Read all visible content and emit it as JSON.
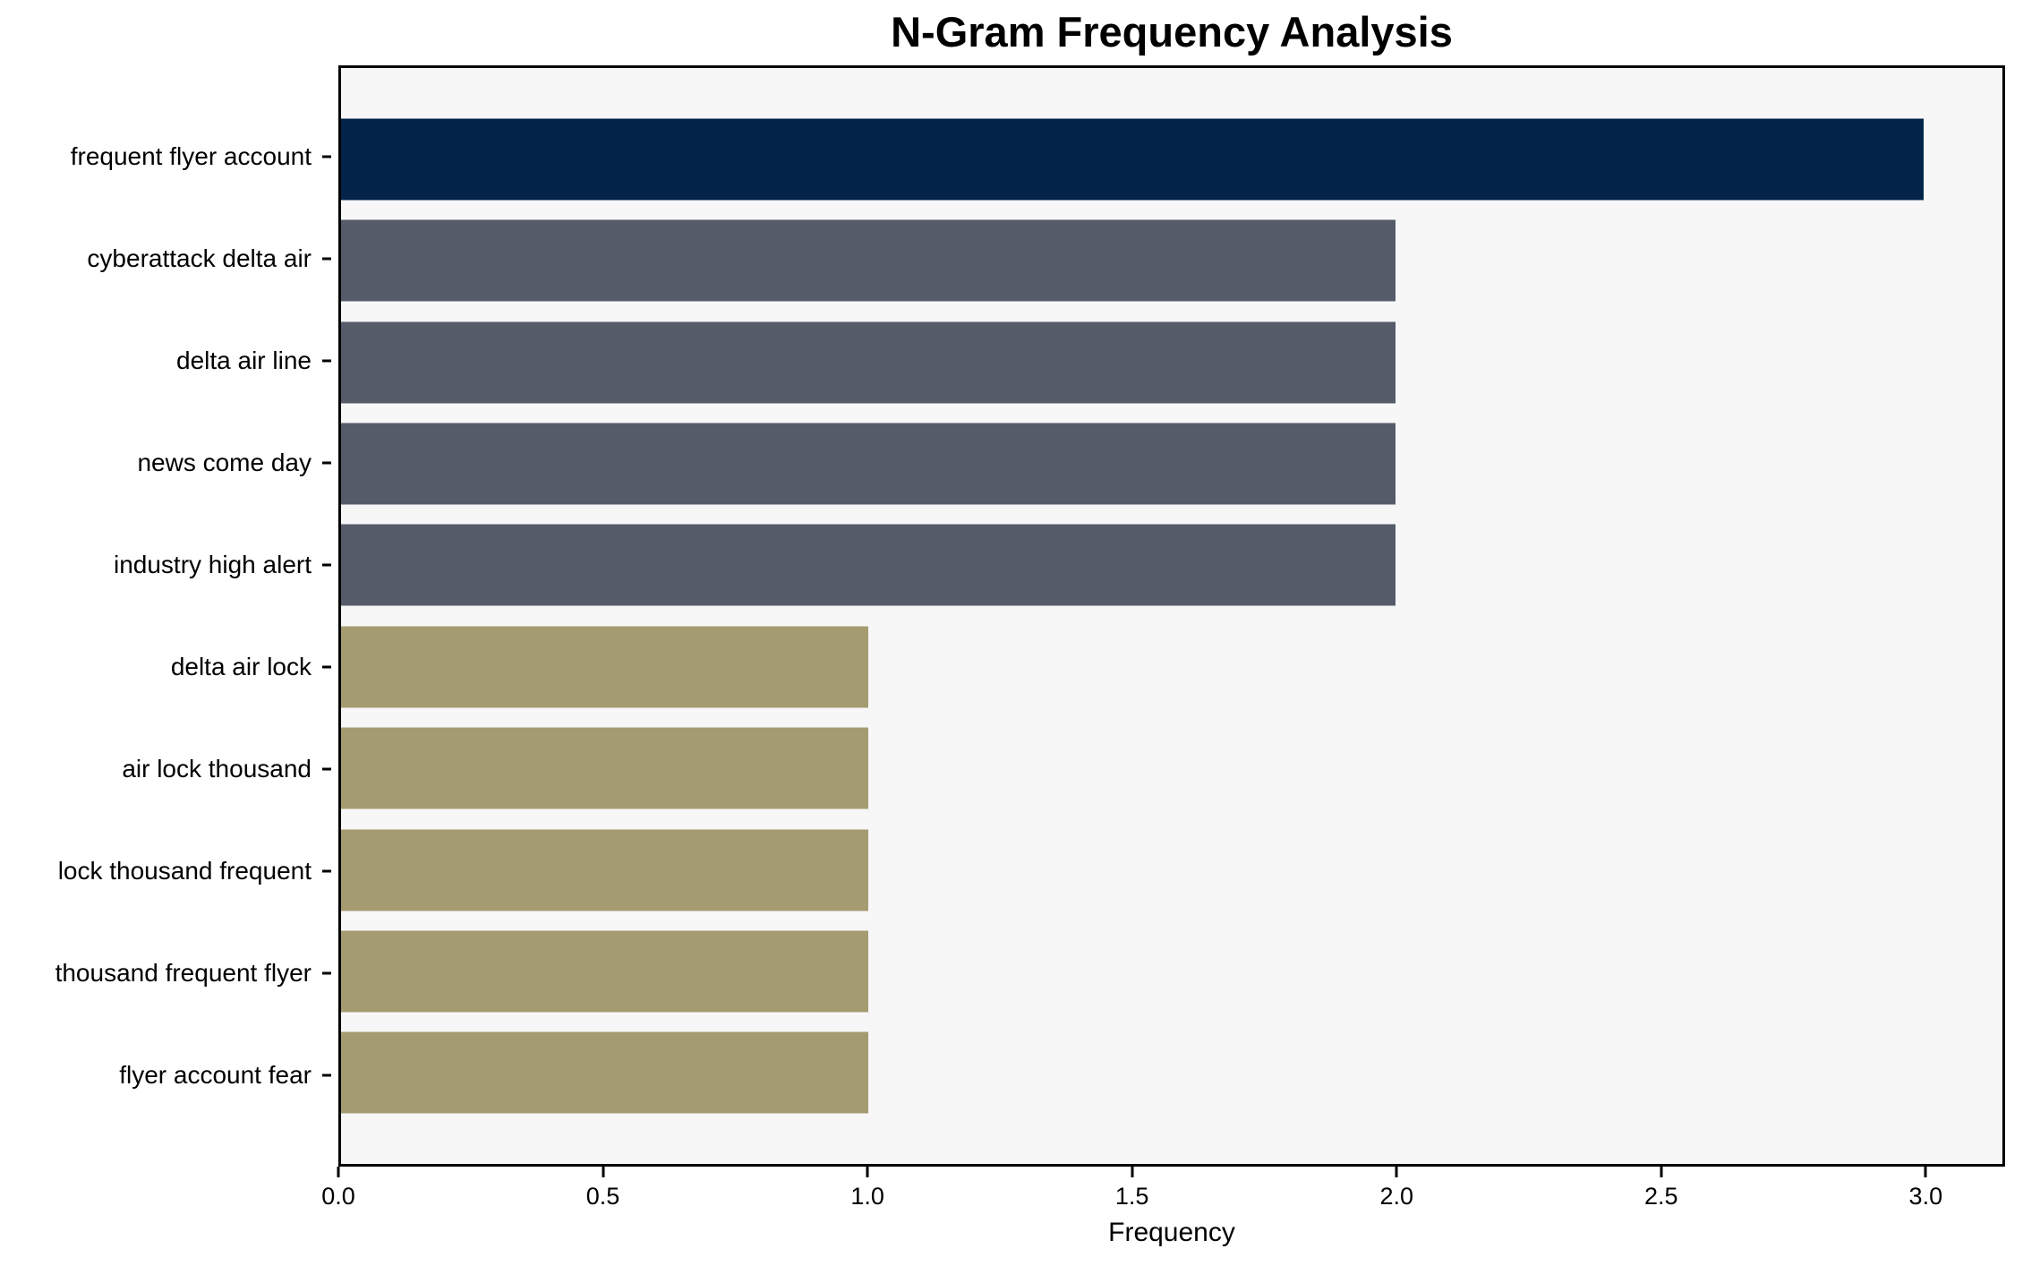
{
  "chart_data": {
    "type": "bar",
    "orientation": "horizontal",
    "title": "N-Gram Frequency Analysis",
    "xlabel": "Frequency",
    "ylabel": "",
    "categories": [
      "frequent flyer account",
      "cyberattack delta air",
      "delta air line",
      "news come day",
      "industry high alert",
      "delta air lock",
      "air lock thousand",
      "lock thousand frequent",
      "thousand frequent flyer",
      "flyer account fear"
    ],
    "values": [
      3,
      2,
      2,
      2,
      2,
      1,
      1,
      1,
      1,
      1
    ],
    "bar_colors": [
      "#032349",
      "#565b6a",
      "#565b6a",
      "#565b6a",
      "#565b6a",
      "#a49b70",
      "#a49b70",
      "#a49b70",
      "#a49b70",
      "#a49b70"
    ],
    "xlim": [
      0,
      3.15
    ],
    "x_tick_values": [
      0,
      0.5,
      1,
      1.5,
      2,
      2.5,
      3
    ],
    "x_tick_labels": [
      "0.0",
      "0.5",
      "1.0",
      "1.5",
      "2.0",
      "2.5",
      "3.0"
    ],
    "grid": false,
    "legend": null,
    "colors": {
      "plot_background": "#f7f7f8",
      "figure_background": "#ffffff",
      "spine": "#000000",
      "text": "#000000"
    }
  }
}
